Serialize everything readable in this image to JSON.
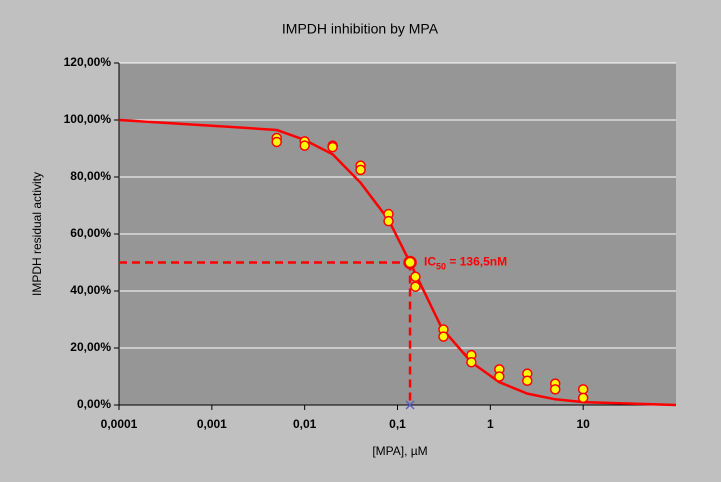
{
  "chart_data": {
    "type": "scatter",
    "title": "IMPDH inhibition by MPA",
    "x_label": "[MPA], µM",
    "y_label": "IMPDH residual activity",
    "log_x": true,
    "grid": true,
    "xlim": [
      0.0001,
      100
    ],
    "xticks": [
      {
        "value": 0.0001,
        "label": "0,0001"
      },
      {
        "value": 0.001,
        "label": "0,001"
      },
      {
        "value": 0.01,
        "label": "0,01"
      },
      {
        "value": 0.1,
        "label": "0,1"
      },
      1,
      10
    ],
    "ylim": [
      0,
      120
    ],
    "yticks": [
      {
        "value": 0,
        "label": "0,00%"
      },
      {
        "value": 20,
        "label": "20,00%"
      },
      {
        "value": 40,
        "label": "40,00%"
      },
      {
        "value": 60,
        "label": "60,00%"
      },
      {
        "value": 80,
        "label": "80,00%"
      },
      {
        "value": 100,
        "label": "100,00%"
      },
      {
        "value": 120,
        "label": "120,00%"
      }
    ],
    "series": [
      {
        "type": "scatter",
        "color": "#ffff00",
        "stroke": "#ff0000",
        "x": [
          0.005,
          0.005,
          0.01,
          0.01,
          0.02,
          0.02,
          0.04,
          0.04,
          0.08,
          0.08,
          0.156,
          0.156,
          0.3125,
          0.3125,
          0.625,
          0.625,
          1.25,
          1.25,
          2.5,
          2.5,
          5,
          5,
          10,
          10
        ],
        "values": [
          93.7,
          92.3,
          92.5,
          91,
          91,
          90.5,
          84,
          82.5,
          67,
          64.5,
          45,
          41.5,
          26.5,
          24,
          17.5,
          15,
          12.5,
          10,
          11,
          8.5,
          7.5,
          5.5,
          5.5,
          2.5
        ]
      },
      {
        "type": "line",
        "color": "#ff0000",
        "x": [
          0.0001,
          0.001,
          0.005,
          0.01,
          0.02,
          0.04,
          0.08,
          0.1365,
          0.3,
          0.625,
          1.25,
          2.5,
          5,
          10,
          100
        ],
        "values": [
          100,
          98,
          96.5,
          93,
          88,
          78,
          65,
          50,
          27,
          15,
          8,
          4,
          2,
          1,
          0
        ]
      }
    ],
    "ic50": {
      "x": 0.1365,
      "y": 50,
      "color": "#ff0000",
      "label": [
        "IC",
        "50",
        " = 136,5nM"
      ]
    }
  }
}
